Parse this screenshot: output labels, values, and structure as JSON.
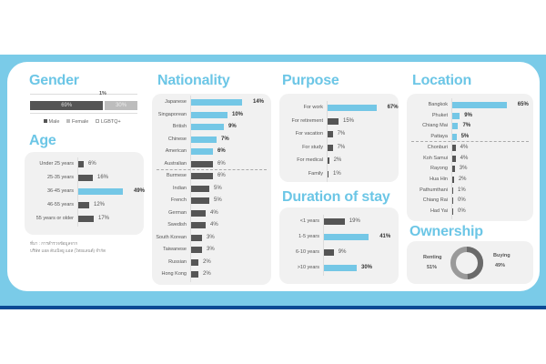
{
  "colors": {
    "accent": "#74c7e6",
    "dark": "#555555",
    "light": "#bdbdbd"
  },
  "gender": {
    "title": "Gender",
    "male": {
      "label": "Male",
      "value": 69,
      "text": "69%"
    },
    "female": {
      "label": "Female",
      "value": 30,
      "text": "30%"
    },
    "lgbtq": {
      "label": "LGBTQ+",
      "value": 1,
      "text": "1%"
    }
  },
  "age": {
    "title": "Age",
    "items": [
      {
        "label": "Under 25 years",
        "value": 6,
        "text": "6%"
      },
      {
        "label": "25-35 years",
        "value": 16,
        "text": "16%"
      },
      {
        "label": "36-45 years",
        "value": 49,
        "text": "49%",
        "highlight": true
      },
      {
        "label": "46-55 years",
        "value": 12,
        "text": "12%"
      },
      {
        "label": "55 years or older",
        "value": 17,
        "text": "17%"
      }
    ]
  },
  "source": {
    "line1": "ที่มา : การสำรวจข้อมูลจาก",
    "line2": "บริษัท แอล ดับเบิลยู แอส (ไทยแลนด์) จำกัด"
  },
  "nationality": {
    "title": "Nationality",
    "items": [
      {
        "label": "Japanese",
        "value": 14,
        "text": "14%",
        "highlight": true
      },
      {
        "label": "Singaporean",
        "value": 10,
        "text": "10%",
        "highlight": true
      },
      {
        "label": "British",
        "value": 9,
        "text": "9%",
        "highlight": true
      },
      {
        "label": "Chinese",
        "value": 7,
        "text": "7%",
        "highlight": true
      },
      {
        "label": "American",
        "value": 6,
        "text": "6%",
        "highlight": true
      },
      {
        "label": "Australian",
        "value": 6,
        "text": "6%"
      },
      {
        "label": "Burmese",
        "value": 6,
        "text": "6%"
      },
      {
        "label": "Indian",
        "value": 5,
        "text": "5%"
      },
      {
        "label": "French",
        "value": 5,
        "text": "5%"
      },
      {
        "label": "German",
        "value": 4,
        "text": "4%"
      },
      {
        "label": "Swedish",
        "value": 4,
        "text": "4%"
      },
      {
        "label": "South Korean",
        "value": 3,
        "text": "3%"
      },
      {
        "label": "Taiwanese",
        "value": 3,
        "text": "3%"
      },
      {
        "label": "Russian",
        "value": 2,
        "text": "2%"
      },
      {
        "label": "Hong Kong",
        "value": 2,
        "text": "2%"
      }
    ]
  },
  "purpose": {
    "title": "Purpose",
    "items": [
      {
        "label": "For work",
        "value": 67,
        "text": "67%",
        "highlight": true
      },
      {
        "label": "For retirement",
        "value": 15,
        "text": "15%"
      },
      {
        "label": "For vacation",
        "value": 7,
        "text": "7%"
      },
      {
        "label": "For study",
        "value": 7,
        "text": "7%"
      },
      {
        "label": "For medical",
        "value": 2,
        "text": "2%"
      },
      {
        "label": "Family",
        "value": 1,
        "text": "1%"
      }
    ]
  },
  "duration": {
    "title": "Duration of stay",
    "items": [
      {
        "label": "<1 years",
        "value": 19,
        "text": "19%"
      },
      {
        "label": "1-5 years",
        "value": 41,
        "text": "41%",
        "highlight": true
      },
      {
        "label": "6-10 years",
        "value": 9,
        "text": "9%"
      },
      {
        "label": ">10 years",
        "value": 30,
        "text": "30%",
        "highlight": true
      }
    ]
  },
  "location": {
    "title": "Location",
    "items": [
      {
        "label": "Bangkok",
        "value": 65,
        "text": "65%",
        "highlight": true
      },
      {
        "label": "Phuket",
        "value": 9,
        "text": "9%",
        "highlight": true
      },
      {
        "label": "Chiang Mai",
        "value": 7,
        "text": "7%",
        "highlight": true
      },
      {
        "label": "Pattaya",
        "value": 5,
        "text": "5%",
        "highlight": true
      },
      {
        "label": "Chonburi",
        "value": 4,
        "text": "4%"
      },
      {
        "label": "Koh Samui",
        "value": 4,
        "text": "4%"
      },
      {
        "label": "Rayong",
        "value": 3,
        "text": "3%"
      },
      {
        "label": "Hua Hin",
        "value": 2,
        "text": "2%"
      },
      {
        "label": "Pathumthani",
        "value": 1,
        "text": "1%"
      },
      {
        "label": "Chiang Rai",
        "value": 0,
        "text": "0%"
      },
      {
        "label": "Had Yai",
        "value": 0,
        "text": "0%"
      }
    ]
  },
  "ownership": {
    "title": "Ownership",
    "renting": {
      "label": "Renting",
      "value": 51,
      "text": "51%"
    },
    "buying": {
      "label": "Buying",
      "value": 49,
      "text": "49%"
    }
  }
}
